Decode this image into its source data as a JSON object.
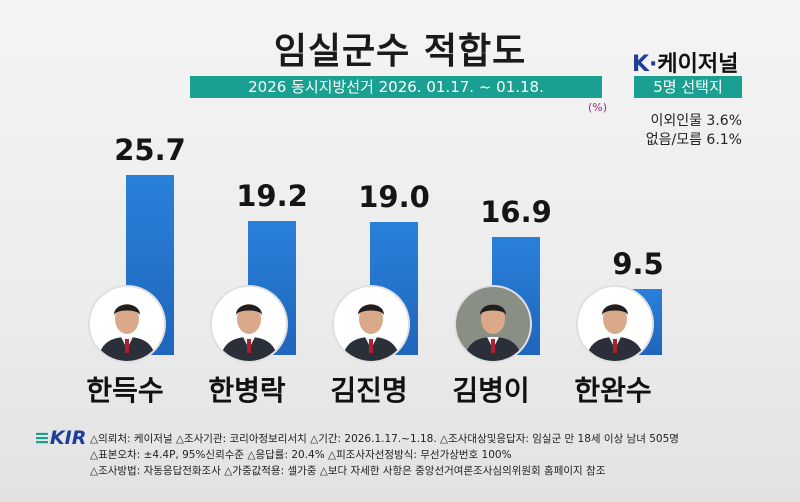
{
  "header": {
    "title": "임실군수 적합도",
    "subtitle": "2026 동시지방선거 2026. 01.17. ~ 01.18.",
    "unit": "(%)",
    "brand_k": "K·",
    "brand_name": "케이저널",
    "brand_tag": "5명 선택지"
  },
  "notes": {
    "other": "이외인물 3.6%",
    "none": "없음/모름 6.1%"
  },
  "chart_data": {
    "type": "bar",
    "title": "임실군수 적합도",
    "categories": [
      "한득수",
      "한병락",
      "김진명",
      "김병이",
      "한완수"
    ],
    "values": [
      25.7,
      19.2,
      19.0,
      16.9,
      9.5
    ],
    "value_labels": [
      "25.7",
      "19.2",
      "19.0",
      "16.9",
      "9.5"
    ],
    "ylim": [
      0,
      30
    ],
    "grid": false,
    "bar_color": "#2a80da",
    "photo_tones": [
      "#ffffff",
      "#ffffff",
      "#ffffff",
      "#8a8f86",
      "#ffffff"
    ]
  },
  "footer": {
    "logo": "KIR",
    "line1": "△의뢰처: 케이저널  △조사기관: 코리아정보리서치  △기간: 2026.1.17.~1.18.  △조사대상및응답자: 임실군 만 18세 이상 남녀 505명",
    "line2": "△표본오차: ±4.4P, 95%신뢰수준 △응답률: 20.4% △피조사자선정방식: 무선가상번호 100%",
    "line3": "△조사방법: 자동응답전화조사 △가중값적용: 셀가중 △보다 자세한 사항은 중앙선거여론조사심의위원회 홈페이지 참조"
  }
}
